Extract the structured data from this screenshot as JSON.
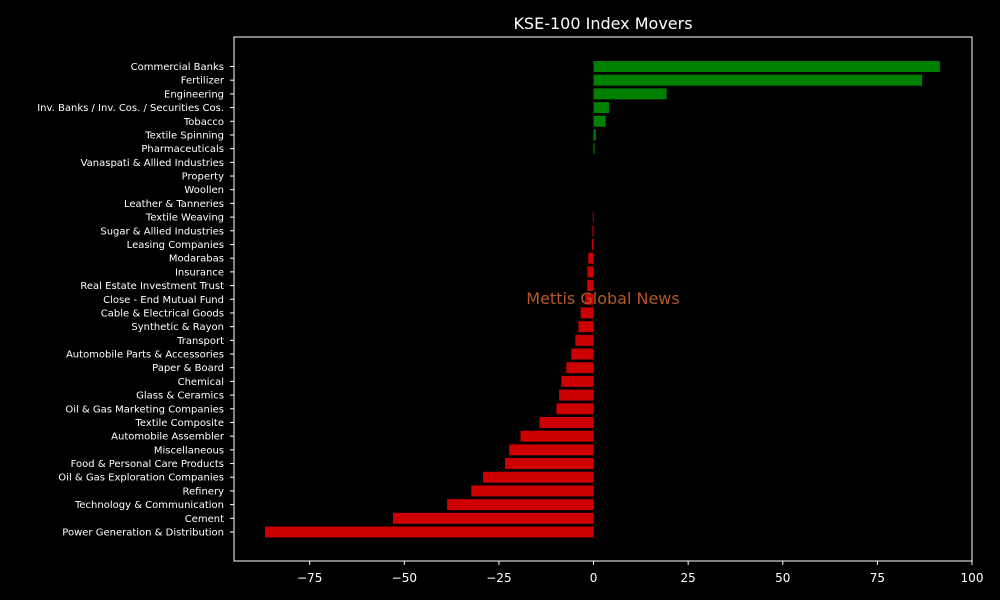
{
  "chart_data": {
    "type": "bar",
    "orientation": "horizontal",
    "title": "KSE-100 Index Movers",
    "xlabel": "",
    "ylabel": "",
    "xlim": [
      -95,
      100
    ],
    "xticks": [
      -75,
      -50,
      -25,
      0,
      25,
      50,
      75,
      100
    ],
    "xtick_labels": [
      "−75",
      "−50",
      "−25",
      "0",
      "25",
      "50",
      "75",
      "100"
    ],
    "grid": false,
    "legend": "none",
    "watermark": "Mettis Global News",
    "categories": [
      "Commercial Banks",
      "Fertilizer",
      "Engineering",
      "Inv. Banks / Inv. Cos. / Securities Cos.",
      "Tobacco",
      "Textile Spinning",
      "Pharmaceuticals",
      "Vanaspati & Allied Industries",
      "Property",
      "Woollen",
      "Leather & Tanneries",
      "Textile Weaving",
      "Sugar & Allied Industries",
      "Leasing Companies",
      "Modarabas",
      "Insurance",
      "Real Estate Investment Trust",
      "Close - End Mutual Fund",
      "Cable & Electrical Goods",
      "Synthetic & Rayon",
      "Transport",
      "Automobile Parts & Accessories",
      "Paper & Board",
      "Chemical",
      "Glass & Ceramics",
      "Oil & Gas Marketing Companies",
      "Textile Composite",
      "Automobile Assembler",
      "Miscellaneous",
      "Food & Personal Care Products",
      "Oil & Gas Exploration Companies",
      "Refinery",
      "Technology & Communication",
      "Cement",
      "Power Generation & Distribution"
    ],
    "values": [
      91.5,
      86.8,
      19.3,
      4.1,
      3.2,
      0.6,
      0.3,
      0,
      0,
      0,
      0,
      -0.2,
      -0.3,
      -0.4,
      -1.4,
      -1.6,
      -1.7,
      -2.2,
      -3.4,
      -4.0,
      -4.8,
      -5.9,
      -7.2,
      -8.5,
      -9.1,
      -9.8,
      -14.3,
      -19.3,
      -22.3,
      -23.4,
      -29.2,
      -32.3,
      -38.7,
      -53.0,
      -86.8
    ],
    "colors": {
      "positive": "#008000",
      "negative": "#cc0000",
      "background": "#000000",
      "text": "#ffffff",
      "axes": "#ffffff",
      "watermark": "#b5552a"
    }
  }
}
